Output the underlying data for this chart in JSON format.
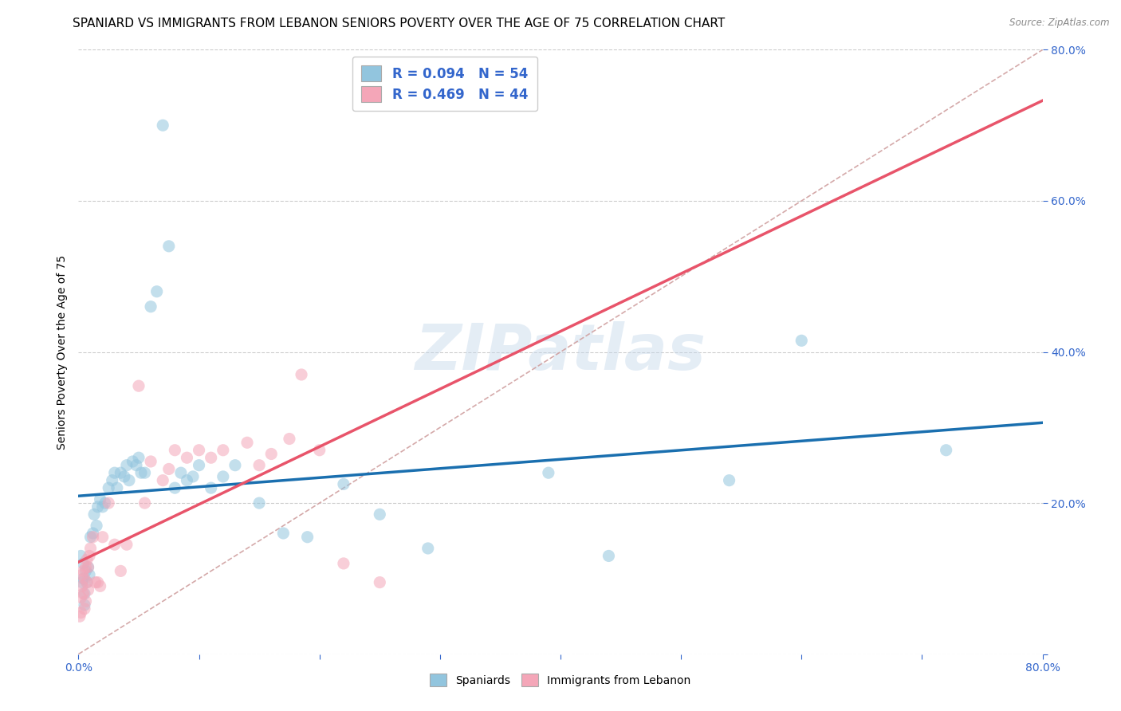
{
  "title": "SPANIARD VS IMMIGRANTS FROM LEBANON SENIORS POVERTY OVER THE AGE OF 75 CORRELATION CHART",
  "source": "Source: ZipAtlas.com",
  "ylabel": "Seniors Poverty Over the Age of 75",
  "color_spaniard": "#92c5de",
  "color_lebanon": "#f4a6b8",
  "color_line_spaniard": "#1a6faf",
  "color_line_lebanon": "#e8546a",
  "color_diagonal": "#d0a0a0",
  "spaniard_x": [
    0.002,
    0.003,
    0.004,
    0.004,
    0.005,
    0.005,
    0.006,
    0.007,
    0.008,
    0.009,
    0.01,
    0.012,
    0.013,
    0.015,
    0.016,
    0.018,
    0.02,
    0.022,
    0.025,
    0.028,
    0.03,
    0.032,
    0.035,
    0.038,
    0.04,
    0.042,
    0.045,
    0.048,
    0.05,
    0.052,
    0.055,
    0.06,
    0.065,
    0.07,
    0.075,
    0.08,
    0.085,
    0.09,
    0.095,
    0.1,
    0.11,
    0.12,
    0.13,
    0.15,
    0.17,
    0.19,
    0.22,
    0.25,
    0.29,
    0.39,
    0.44,
    0.54,
    0.6,
    0.72
  ],
  "spaniard_y": [
    0.13,
    0.095,
    0.12,
    0.1,
    0.08,
    0.065,
    0.11,
    0.095,
    0.115,
    0.105,
    0.155,
    0.16,
    0.185,
    0.17,
    0.195,
    0.205,
    0.195,
    0.2,
    0.22,
    0.23,
    0.24,
    0.22,
    0.24,
    0.235,
    0.25,
    0.23,
    0.255,
    0.25,
    0.26,
    0.24,
    0.24,
    0.46,
    0.48,
    0.7,
    0.54,
    0.22,
    0.24,
    0.23,
    0.235,
    0.25,
    0.22,
    0.235,
    0.25,
    0.2,
    0.16,
    0.155,
    0.225,
    0.185,
    0.14,
    0.24,
    0.13,
    0.23,
    0.415,
    0.27
  ],
  "lebanon_x": [
    0.001,
    0.002,
    0.002,
    0.003,
    0.003,
    0.004,
    0.004,
    0.005,
    0.005,
    0.006,
    0.006,
    0.007,
    0.007,
    0.008,
    0.008,
    0.009,
    0.01,
    0.012,
    0.014,
    0.016,
    0.018,
    0.02,
    0.025,
    0.03,
    0.035,
    0.04,
    0.05,
    0.055,
    0.06,
    0.07,
    0.075,
    0.08,
    0.09,
    0.1,
    0.11,
    0.12,
    0.14,
    0.15,
    0.16,
    0.175,
    0.185,
    0.2,
    0.22,
    0.25
  ],
  "lebanon_y": [
    0.05,
    0.055,
    0.075,
    0.09,
    0.105,
    0.08,
    0.11,
    0.06,
    0.1,
    0.115,
    0.07,
    0.125,
    0.095,
    0.085,
    0.115,
    0.13,
    0.14,
    0.155,
    0.095,
    0.095,
    0.09,
    0.155,
    0.2,
    0.145,
    0.11,
    0.145,
    0.355,
    0.2,
    0.255,
    0.23,
    0.245,
    0.27,
    0.26,
    0.27,
    0.26,
    0.27,
    0.28,
    0.25,
    0.265,
    0.285,
    0.37,
    0.27,
    0.12,
    0.095
  ],
  "xlim": [
    0.0,
    0.8
  ],
  "ylim": [
    0.0,
    0.8
  ],
  "marker_size": 120,
  "alpha": 0.55,
  "grid_color": "#cccccc",
  "background_color": "#ffffff",
  "title_fontsize": 11,
  "label_fontsize": 10,
  "tick_fontsize": 10,
  "tick_color": "#3366cc",
  "watermark": "ZIPatlas",
  "watermark_color": "#c5d8eb"
}
